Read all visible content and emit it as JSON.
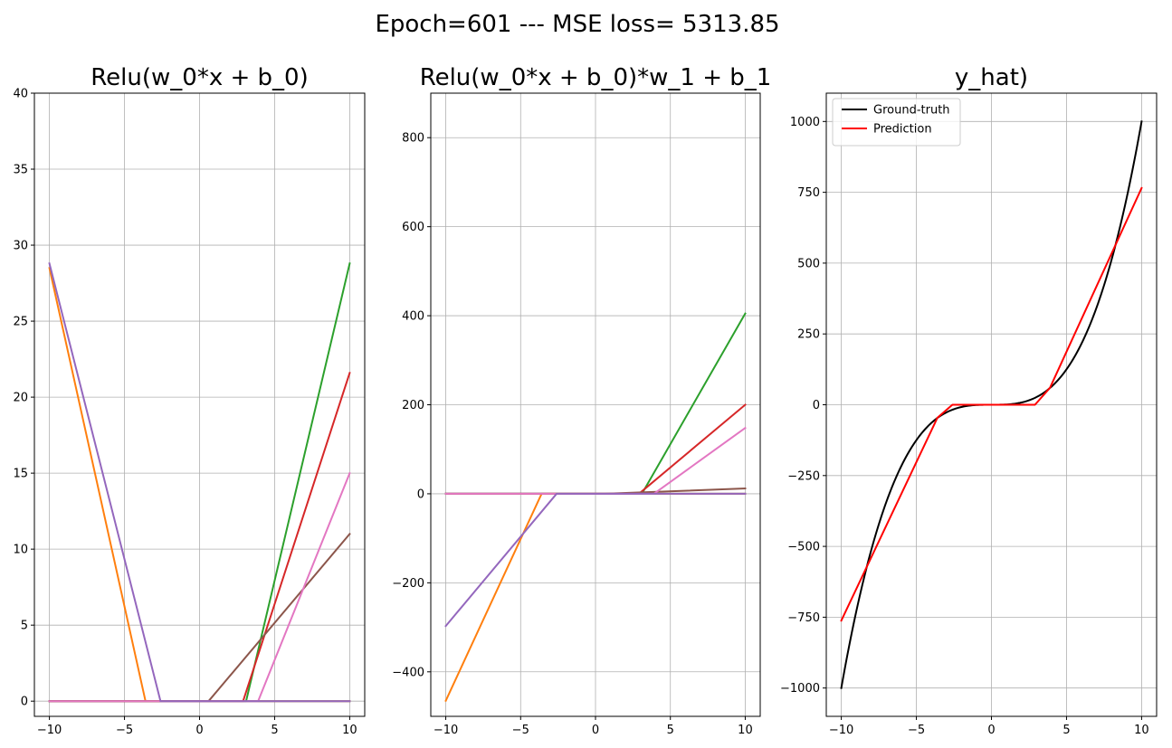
{
  "suptitle": "Epoch=601 --- MSE loss= 5313.85",
  "chart_data": [
    {
      "type": "line",
      "title": "Relu(w_0*x + b_0)",
      "xlim": [
        -11,
        11
      ],
      "ylim": [
        -1,
        40
      ],
      "xticks": [
        -10,
        -5,
        0,
        5,
        10
      ],
      "yticks": [
        0,
        5,
        10,
        15,
        20,
        25,
        30,
        35,
        40
      ],
      "grid": true,
      "series": [
        {
          "color": "#1f77b4",
          "x": [
            -10,
            10
          ],
          "y": [
            0,
            0
          ]
        },
        {
          "color": "#ff7f0e",
          "x": [
            -10,
            -3.6,
            10
          ],
          "y": [
            28.5,
            0,
            0
          ]
        },
        {
          "color": "#2ca02c",
          "x": [
            -10,
            3.1,
            10
          ],
          "y": [
            0,
            0,
            28.8
          ]
        },
        {
          "color": "#d62728",
          "x": [
            -10,
            2.9,
            10
          ],
          "y": [
            0,
            0,
            21.6
          ]
        },
        {
          "color": "#8c564b",
          "x": [
            -10,
            0.6,
            10
          ],
          "y": [
            0,
            0,
            11.0
          ]
        },
        {
          "color": "#e377c2",
          "x": [
            -10,
            3.9,
            10
          ],
          "y": [
            0,
            0,
            15.0
          ]
        },
        {
          "color": "#9467bd",
          "x": [
            -10,
            -2.6,
            10
          ],
          "y": [
            28.8,
            0,
            0
          ]
        }
      ]
    },
    {
      "type": "line",
      "title": "Relu(w_0*x + b_0)*w_1 + b_1",
      "xlim": [
        -11,
        11
      ],
      "ylim": [
        -500,
        900
      ],
      "xticks": [
        -10,
        -5,
        0,
        5,
        10
      ],
      "yticks": [
        -400,
        -200,
        0,
        200,
        400,
        600,
        800
      ],
      "grid": true,
      "series": [
        {
          "color": "#1f77b4",
          "x": [
            -10,
            10
          ],
          "y": [
            0,
            0
          ]
        },
        {
          "color": "#ff7f0e",
          "x": [
            -10,
            -3.6,
            10
          ],
          "y": [
            -465,
            0,
            0
          ]
        },
        {
          "color": "#2ca02c",
          "x": [
            -10,
            3.1,
            10
          ],
          "y": [
            0,
            0,
            405
          ]
        },
        {
          "color": "#d62728",
          "x": [
            -10,
            2.9,
            10
          ],
          "y": [
            0,
            0,
            200
          ]
        },
        {
          "color": "#8c564b",
          "x": [
            -10,
            0.6,
            10
          ],
          "y": [
            0,
            0,
            12
          ]
        },
        {
          "color": "#e377c2",
          "x": [
            -10,
            3.9,
            10
          ],
          "y": [
            0,
            0,
            148
          ]
        },
        {
          "color": "#9467bd",
          "x": [
            -10,
            -2.6,
            10
          ],
          "y": [
            -297,
            0,
            0
          ]
        }
      ]
    },
    {
      "type": "line",
      "title": "y_hat)",
      "xlim": [
        -11,
        11
      ],
      "ylim": [
        -1100,
        1100
      ],
      "xticks": [
        -10,
        -5,
        0,
        5,
        10
      ],
      "yticks": [
        -1000,
        -750,
        -500,
        -250,
        0,
        250,
        500,
        750,
        1000
      ],
      "grid": true,
      "legend": "upper-left",
      "series": [
        {
          "name": "Ground-truth",
          "color": "#000000",
          "function": "cube",
          "x_range": [
            -10,
            10
          ]
        },
        {
          "name": "Prediction",
          "color": "#ff0000",
          "x": [
            -10,
            -3.6,
            -2.6,
            0.6,
            2.9,
            3.1,
            3.9,
            10
          ],
          "y": [
            -762,
            -46,
            0,
            0,
            0,
            12,
            60,
            765
          ]
        }
      ]
    }
  ]
}
